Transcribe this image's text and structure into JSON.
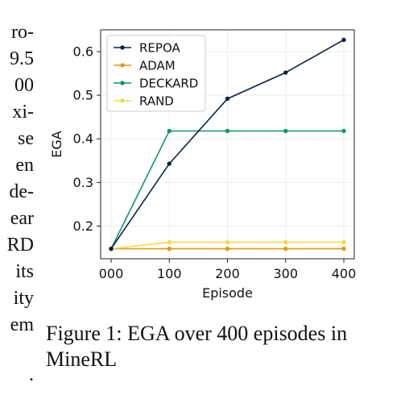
{
  "left_column": {
    "fragments": [
      "ro-",
      "9.5",
      "00",
      "xi-",
      "se",
      "en",
      "de-",
      "ear",
      "RD",
      "its",
      "ity",
      "em",
      "."
    ]
  },
  "chart_data": {
    "type": "line",
    "title": "",
    "xlabel": "Episode",
    "ylabel": "EGA",
    "x": [
      0,
      100,
      200,
      300,
      400
    ],
    "x_tick_labels": [
      "000",
      "100",
      "200",
      "300",
      "400"
    ],
    "y_ticks": [
      0.2,
      0.3,
      0.4,
      0.5,
      0.6
    ],
    "y_tick_labels": [
      "0.2",
      "0.3",
      "0.4",
      "0.5",
      "0.6"
    ],
    "xlim": [
      -18,
      418
    ],
    "ylim": [
      0.125,
      0.65
    ],
    "grid": true,
    "legend_position": "top-left",
    "series": [
      {
        "name": "REPOA",
        "color": "#0b2340",
        "values": [
          0.148,
          0.343,
          0.492,
          0.552,
          0.627
        ]
      },
      {
        "name": "ADAM",
        "color": "#e09a13",
        "values": [
          0.148,
          0.148,
          0.148,
          0.148,
          0.148
        ]
      },
      {
        "name": "DECKARD",
        "color": "#10956a",
        "values": [
          0.148,
          0.418,
          0.418,
          0.418,
          0.418
        ]
      },
      {
        "name": "RAND",
        "color": "#f0dc4a",
        "values": [
          0.148,
          0.163,
          0.163,
          0.163,
          0.163
        ]
      }
    ]
  },
  "caption": {
    "text": "Figure 1: EGA over 400 episodes in MineRL"
  }
}
